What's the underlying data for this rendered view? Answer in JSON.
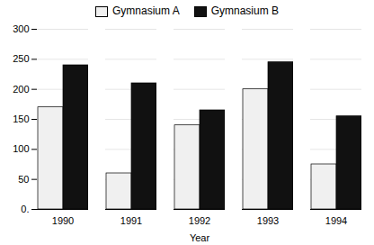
{
  "chart_data": {
    "type": "bar",
    "xlabel": "Year",
    "categories": [
      "1990",
      "1991",
      "1992",
      "1993",
      "1994"
    ],
    "series": [
      {
        "name": "Gymnasium A",
        "color": "#f0f0f0",
        "values": [
          170,
          60,
          140,
          200,
          75
        ]
      },
      {
        "name": "Gymnasium B",
        "color": "#111111",
        "values": [
          240,
          210,
          165,
          245,
          155
        ]
      }
    ],
    "ylim": [
      0,
      300
    ],
    "yticks": [
      {
        "value": 0,
        "label": "0."
      },
      50,
      100,
      150,
      200,
      250,
      300
    ],
    "grid": true,
    "legend": "top"
  }
}
